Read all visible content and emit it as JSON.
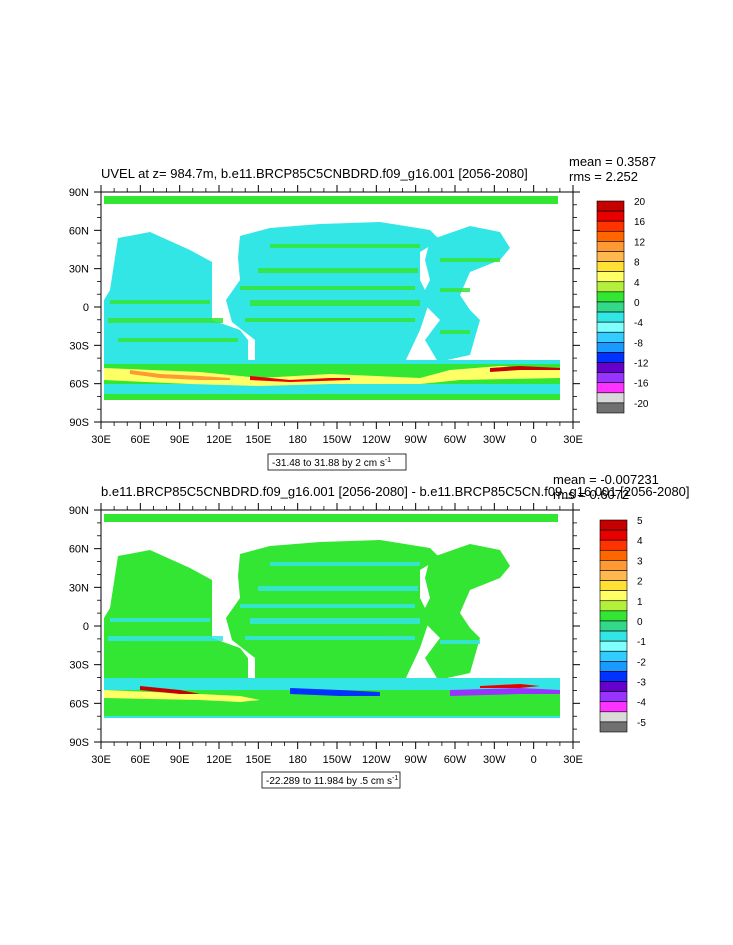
{
  "chart_data": [
    {
      "type": "heatmap",
      "title": "UVEL at z= 984.7m, b.e11.BRCP85C5CNBDRD.f09_g16.001 [2056-2080]",
      "stats": {
        "mean": "mean = 0.3587",
        "rms": "rms = 2.252"
      },
      "x_ticks": [
        "30E",
        "60E",
        "90E",
        "120E",
        "150E",
        "180",
        "150W",
        "120W",
        "90W",
        "60W",
        "30W",
        "0",
        "30E"
      ],
      "y_ticks": [
        "90N",
        "60N",
        "30N",
        "0",
        "30S",
        "60S",
        "90S"
      ],
      "contour_info": "-31.48 to 31.88 by 2 cm s",
      "contour_unit_sup": "-1",
      "colorbar": {
        "labels": [
          "20",
          "16",
          "12",
          "8",
          "4",
          "0",
          "-4",
          "-8",
          "-12",
          "-16",
          "-20"
        ],
        "colors": [
          "#C40000",
          "#E80000",
          "#FF3300",
          "#FF6600",
          "#FF9933",
          "#FFB84D",
          "#FFE033",
          "#FFFF66",
          "#B3F03C",
          "#33E633",
          "#33D988",
          "#33E6E6",
          "#80FFFF",
          "#33CCFF",
          "#1A99FF",
          "#0033FF",
          "#6600CC",
          "#9933FF",
          "#FF33FF",
          "#D9D9D9",
          "#707070"
        ]
      }
    },
    {
      "type": "heatmap",
      "title": "b.e11.BRCP85C5CNBDRD.f09_g16.001 [2056-2080] - b.e11.BRCP85C5CN.f09_g16.001 [2056-2080]",
      "stats": {
        "mean": "mean = -0.007231",
        "rms": "rms = 0.6072"
      },
      "x_ticks": [
        "30E",
        "60E",
        "90E",
        "120E",
        "150E",
        "180",
        "150W",
        "120W",
        "90W",
        "60W",
        "30W",
        "0",
        "30E"
      ],
      "y_ticks": [
        "90N",
        "60N",
        "30N",
        "0",
        "30S",
        "60S",
        "90S"
      ],
      "contour_info": "-22.289 to 11.984 by .5 cm s",
      "contour_unit_sup": "-1",
      "colorbar": {
        "labels": [
          "5",
          "4",
          "3",
          "2",
          "1",
          "0",
          "-1",
          "-2",
          "-3",
          "-4",
          "-5"
        ],
        "colors": [
          "#C40000",
          "#E80000",
          "#FF3300",
          "#FF6600",
          "#FF9933",
          "#FFB84D",
          "#FFE033",
          "#FFFF66",
          "#B3F03C",
          "#33E633",
          "#33D988",
          "#33E6E6",
          "#80FFFF",
          "#33CCFF",
          "#1A99FF",
          "#0033FF",
          "#6600CC",
          "#9933FF",
          "#FF33FF",
          "#D9D9D9",
          "#707070"
        ]
      }
    }
  ],
  "colors": {
    "ocean_base": "#33E6E6",
    "ocean_green": "#33E633",
    "land": "#FFFFFF",
    "frame": "#000000"
  }
}
